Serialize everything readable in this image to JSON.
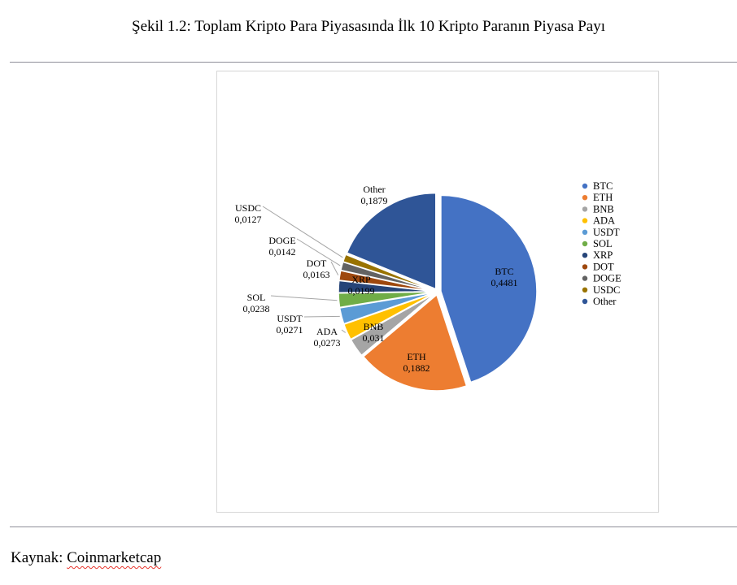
{
  "figure": {
    "title": "Şekil 1.2: Toplam Kripto Para Piyasasında İlk 10 Kripto Paranın Piyasa Payı"
  },
  "source": {
    "label": "Kaynak: ",
    "link": "Coinmarketcap"
  },
  "chart_data": {
    "type": "pie",
    "categories": [
      "BTC",
      "ETH",
      "BNB",
      "ADA",
      "USDT",
      "SOL",
      "XRP",
      "DOT",
      "DOGE",
      "USDC",
      "Other"
    ],
    "values": [
      0.4481,
      0.1882,
      0.031,
      0.0273,
      0.0271,
      0.0238,
      0.0199,
      0.0163,
      0.0142,
      0.0127,
      0.1879
    ],
    "value_labels": [
      "0,4481",
      "0,1882",
      "0,031",
      "0,0273",
      "0,0271",
      "0,0238",
      "0,0199",
      "0,0163",
      "0,0142",
      "0,0127",
      "0,1879"
    ],
    "colors": [
      "#4472c4",
      "#ed7d31",
      "#a5a5a5",
      "#ffc000",
      "#5b9bd5",
      "#70ad47",
      "#264478",
      "#9e480e",
      "#636363",
      "#997300",
      "#2f5597"
    ],
    "legend_position": "right",
    "start": "12 o'clock",
    "direction": "clockwise"
  }
}
